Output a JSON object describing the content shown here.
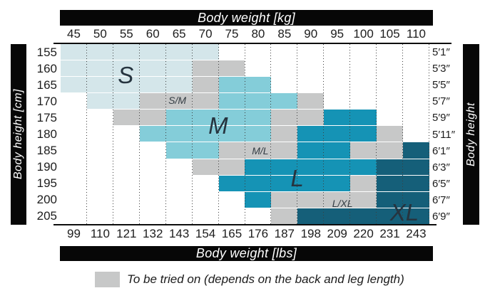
{
  "titles": {
    "top": "Body weight [kg]",
    "bottom": "Body weight [lbs]",
    "left": "Body height [cm]",
    "right": "Body height"
  },
  "legend": {
    "label": "To be tried on (depends on the back and leg length)",
    "swatch_code": "TRY"
  },
  "colors": {
    "": "#ffffff",
    "S": "#d4e6ea",
    "M": "#84cdd9",
    "L": "#1593b5",
    "XL": "#155f79",
    "TRY": "#c7c8c8",
    "bar": "#070707"
  },
  "chart_data": {
    "type": "heatmap",
    "title": "Size chart: body weight vs body height",
    "x_kg": [
      45,
      50,
      55,
      60,
      65,
      70,
      75,
      80,
      85,
      90,
      95,
      100,
      105,
      110
    ],
    "x_lbs": [
      99,
      110,
      121,
      132,
      143,
      154,
      165,
      176,
      187,
      198,
      209,
      220,
      231,
      243
    ],
    "y_cm": [
      155,
      160,
      165,
      170,
      175,
      180,
      185,
      190,
      195,
      200,
      205
    ],
    "y_ft": [
      "5′1″",
      "5′3″",
      "5′5″",
      "5′7″",
      "5′9″",
      "5′11″",
      "6′1″",
      "6′3″",
      "6′5″",
      "6′7″",
      "6′9″"
    ],
    "cell_meaning": {
      "S": "size S",
      "M": "size M",
      "L": "size L",
      "XL": "size XL",
      "TRY": "to be tried on",
      "": "no size"
    },
    "cells": [
      [
        "S",
        "S",
        "S",
        "S",
        "S",
        "S",
        "",
        "",
        "",
        "",
        "",
        "",
        "",
        ""
      ],
      [
        "S",
        "S",
        "S",
        "S",
        "S",
        "TRY",
        "TRY",
        "",
        "",
        "",
        "",
        "",
        "",
        ""
      ],
      [
        "S",
        "S",
        "S",
        "S",
        "S",
        "TRY",
        "M",
        "M",
        "",
        "",
        "",
        "",
        "",
        ""
      ],
      [
        "",
        "S",
        "S",
        "TRY",
        "TRY",
        "TRY",
        "M",
        "M",
        "M",
        "TRY",
        "",
        "",
        "",
        ""
      ],
      [
        "",
        "",
        "TRY",
        "TRY",
        "M",
        "M",
        "M",
        "M",
        "TRY",
        "TRY",
        "L",
        "L",
        "",
        ""
      ],
      [
        "",
        "",
        "",
        "M",
        "M",
        "M",
        "M",
        "M",
        "TRY",
        "L",
        "L",
        "L",
        "TRY",
        ""
      ],
      [
        "",
        "",
        "",
        "",
        "M",
        "M",
        "TRY",
        "TRY",
        "TRY",
        "L",
        "L",
        "TRY",
        "TRY",
        "XL"
      ],
      [
        "",
        "",
        "",
        "",
        "",
        "TRY",
        "TRY",
        "L",
        "L",
        "L",
        "L",
        "L",
        "XL",
        "XL"
      ],
      [
        "",
        "",
        "",
        "",
        "",
        "",
        "L",
        "L",
        "L",
        "L",
        "L",
        "TRY",
        "XL",
        "XL"
      ],
      [
        "",
        "",
        "",
        "",
        "",
        "",
        "",
        "L",
        "TRY",
        "TRY",
        "TRY",
        "TRY",
        "XL",
        "XL"
      ],
      [
        "",
        "",
        "",
        "",
        "",
        "",
        "",
        "",
        "TRY",
        "XL",
        "XL",
        "XL",
        "XL",
        "XL"
      ]
    ],
    "region_labels": [
      {
        "text": "S",
        "col": 2.47,
        "row": 1.9,
        "size": "big"
      },
      {
        "text": "S/M",
        "col": 4.43,
        "row": 3.42,
        "size": "small"
      },
      {
        "text": "M",
        "col": 5.98,
        "row": 4.97,
        "size": "big"
      },
      {
        "text": "M/L",
        "col": 7.58,
        "row": 6.5,
        "size": "small"
      },
      {
        "text": "L",
        "col": 8.98,
        "row": 8.18,
        "size": "big"
      },
      {
        "text": "L/XL",
        "col": 10.7,
        "row": 9.7,
        "size": "small"
      },
      {
        "text": "XL",
        "col": 13.05,
        "row": 10.28,
        "size": "big"
      }
    ]
  }
}
